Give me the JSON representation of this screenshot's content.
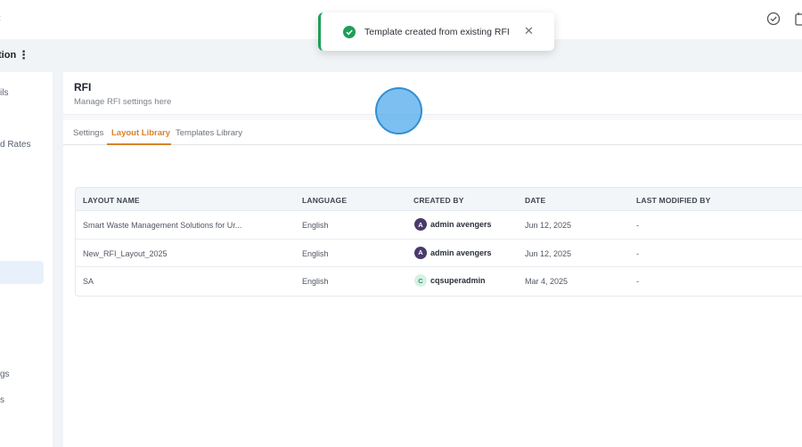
{
  "topbar": {
    "back_glyph": "‹",
    "icons": [
      "check-circle-icon",
      "calendar-icon"
    ]
  },
  "subbar": {
    "title": "tion",
    "menu_glyph": "⋮"
  },
  "leftnav": {
    "items": [
      {
        "label": "ils"
      },
      {
        "label": "d Rates"
      },
      {
        "label": "gs"
      },
      {
        "label": "s"
      }
    ]
  },
  "header": {
    "title": "RFI",
    "subtitle": "Manage RFI settings here"
  },
  "tabs": [
    {
      "label": "Settings",
      "active": false
    },
    {
      "label": "Layout Library",
      "active": true
    },
    {
      "label": "Templates Library",
      "active": false
    }
  ],
  "table": {
    "columns": [
      "LAYOUT NAME",
      "LANGUAGE",
      "CREATED BY",
      "DATE",
      "LAST MODIFIED BY"
    ],
    "rows": [
      {
        "name": "Smart Waste Management Solutions for Ur...",
        "language": "English",
        "created_by": "admin avengers",
        "avatar": "A",
        "date": "Jun 12, 2025",
        "last_modified": "-"
      },
      {
        "name": "New_RFI_Layout_2025",
        "language": "English",
        "created_by": "admin avengers",
        "avatar": "A",
        "date": "Jun 12, 2025",
        "last_modified": "-"
      },
      {
        "name": "SA",
        "language": "English",
        "created_by": "cqsuperadmin",
        "avatar": "C",
        "date": "Mar 4, 2025",
        "last_modified": "-"
      }
    ]
  },
  "toast": {
    "message": "Template created from existing RFI",
    "close_glyph": "✕",
    "accent": "#1e9e57"
  },
  "colors": {
    "accent_tab": "#d9822b",
    "success": "#1e9e57",
    "page_bg": "#f1f4f7"
  }
}
